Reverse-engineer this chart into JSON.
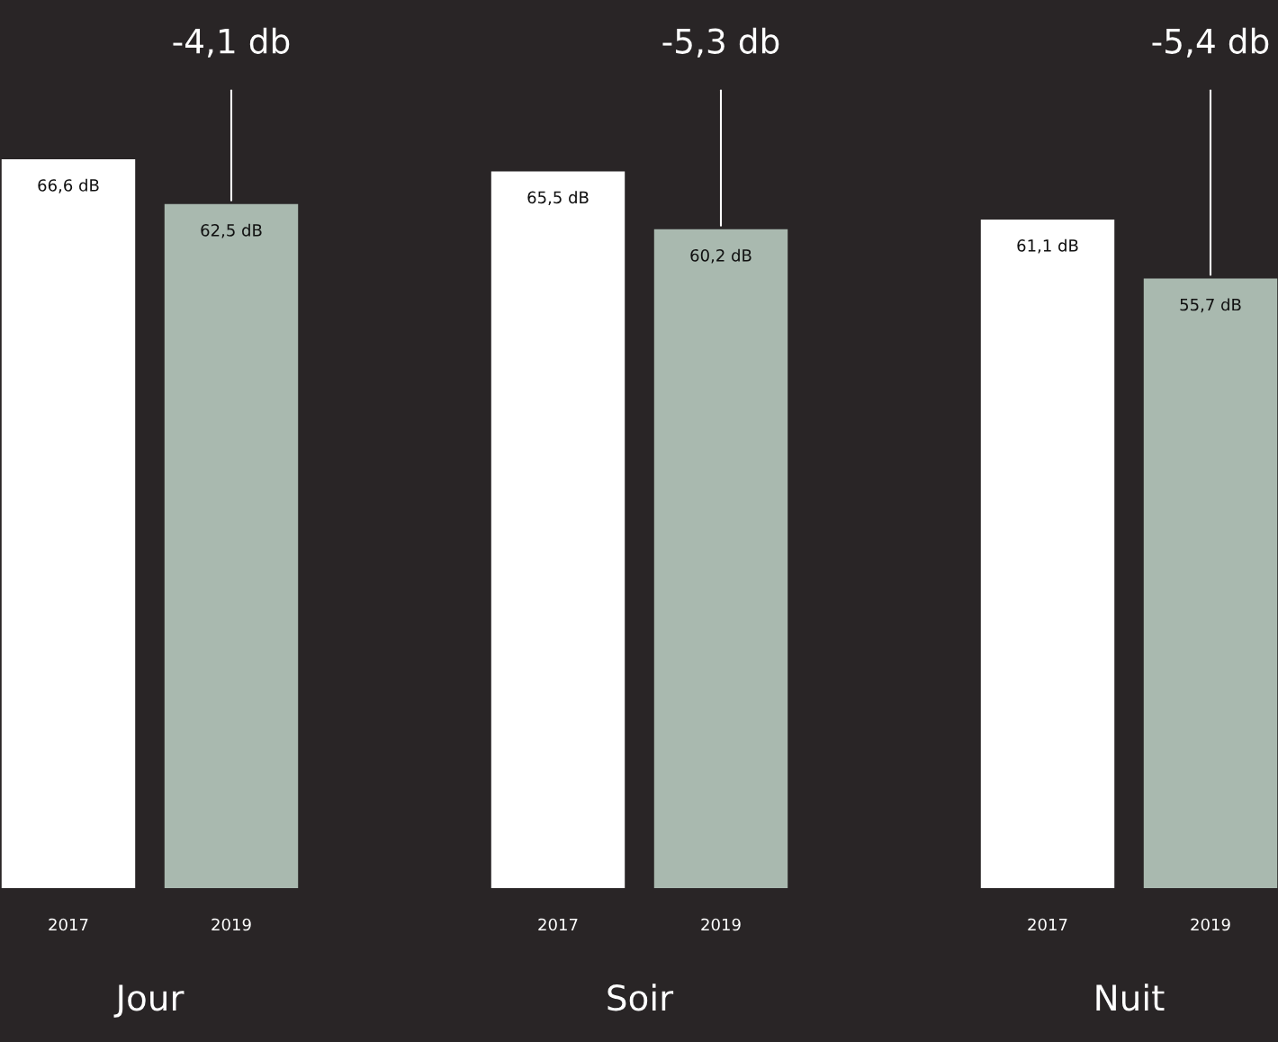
{
  "chart_data": [
    {
      "type": "bar",
      "xlabel": "Jour",
      "categories": [
        "2017",
        "2019"
      ],
      "values": [
        66.6,
        62.5
      ],
      "colors": [
        "#ffffff",
        "#a9b9af"
      ],
      "value_labels": [
        "66,6 dB",
        "62,5 dB"
      ],
      "tick_labels": "x",
      "annotations": [
        {
          "text": "-4,1 db",
          "x": "2019",
          "y": 62.5
        }
      ]
    },
    {
      "type": "bar",
      "xlabel": "Soir",
      "categories": [
        "2017",
        "2019"
      ],
      "values": [
        65.5,
        60.2
      ],
      "colors": [
        "#ffffff",
        "#a9b9af"
      ],
      "value_labels": [
        "65,5 dB",
        "60,2 dB"
      ],
      "tick_labels": "x",
      "annotations": [
        {
          "text": "-5,3 db",
          "x": "2019",
          "y": 60.2
        }
      ]
    },
    {
      "type": "bar",
      "xlabel": "Nuit",
      "categories": [
        "2017",
        "2019"
      ],
      "values": [
        61.1,
        55.7
      ],
      "colors": [
        "#ffffff",
        "#a9b9af"
      ],
      "value_labels": [
        "61,1 dB",
        "55,7 dB"
      ],
      "tick_labels": "x",
      "annotations": [
        {
          "text": "-5,4 db",
          "x": "2019",
          "y": 55.7
        }
      ]
    }
  ]
}
